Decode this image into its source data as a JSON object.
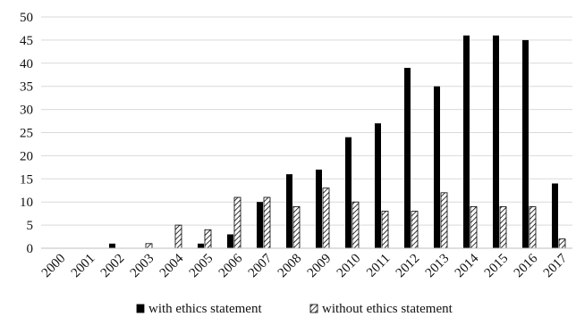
{
  "chart_data": {
    "type": "bar",
    "categories": [
      "2000",
      "2001",
      "2002",
      "2003",
      "2004",
      "2005",
      "2006",
      "2007",
      "2008",
      "2009",
      "2010",
      "2011",
      "2012",
      "2013",
      "2014",
      "2015",
      "2016",
      "2017"
    ],
    "series": [
      {
        "name": "with ethics statement",
        "values": [
          0,
          0,
          1,
          0,
          0,
          1,
          3,
          10,
          16,
          17,
          24,
          27,
          39,
          35,
          46,
          46,
          45,
          14
        ],
        "color": "#000000",
        "pattern": "solid"
      },
      {
        "name": "without ethics statement",
        "values": [
          0,
          0,
          0,
          1,
          5,
          4,
          11,
          11,
          9,
          13,
          10,
          8,
          8,
          12,
          9,
          9,
          9,
          2
        ],
        "color": "#000000",
        "pattern": "diagonal-hatch"
      }
    ],
    "ylim": [
      0,
      50
    ],
    "yticks": [
      0,
      5,
      10,
      15,
      20,
      25,
      30,
      35,
      40,
      45,
      50
    ],
    "grid": true,
    "legend_position": "bottom",
    "title": "",
    "xlabel": "",
    "ylabel": ""
  }
}
